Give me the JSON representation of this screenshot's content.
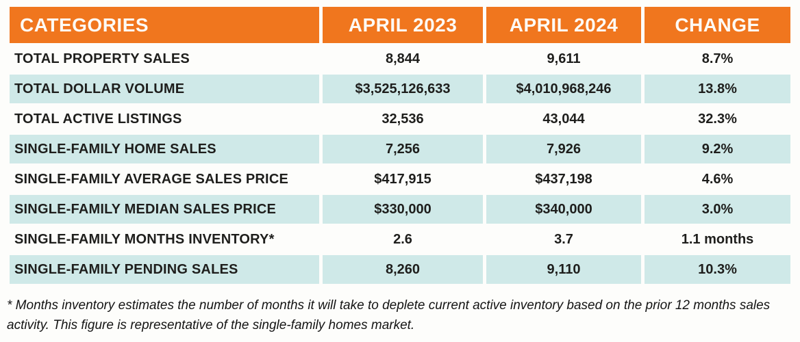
{
  "chart_data": {
    "type": "table",
    "columns": [
      "CATEGORIES",
      "APRIL 2023",
      "APRIL 2024",
      "CHANGE"
    ],
    "rows": [
      [
        "TOTAL PROPERTY SALES",
        "8,844",
        "9,611",
        "8.7%"
      ],
      [
        "TOTAL DOLLAR VOLUME",
        "$3,525,126,633",
        "$4,010,968,246",
        "13.8%"
      ],
      [
        "TOTAL ACTIVE LISTINGS",
        "32,536",
        "43,044",
        "32.3%"
      ],
      [
        "SINGLE-FAMILY HOME SALES",
        "7,256",
        "7,926",
        "9.2%"
      ],
      [
        "SINGLE-FAMILY AVERAGE SALES PRICE",
        "$417,915",
        "$437,198",
        "4.6%"
      ],
      [
        "SINGLE-FAMILY MEDIAN SALES PRICE",
        "$330,000",
        "$340,000",
        "3.0%"
      ],
      [
        "SINGLE-FAMILY MONTHS INVENTORY*",
        "2.6",
        "3.7",
        "1.1 months"
      ],
      [
        "SINGLE-FAMILY PENDING SALES",
        "8,260",
        "9,110",
        "10.3%"
      ]
    ],
    "footnote": "* Months inventory estimates the number of months it will take to deplete current active inventory based on the prior 12 months sales activity. This figure is representative of the single-family homes market.",
    "layout": "alternating row shading, white gutters between columns"
  },
  "colors": {
    "header_bg": "#F0761E",
    "header_text": "#FDFAF5",
    "row_alt_bg": "#CFE9E8",
    "row_bg": "#FDFDFB",
    "text": "#1E1E1C"
  }
}
